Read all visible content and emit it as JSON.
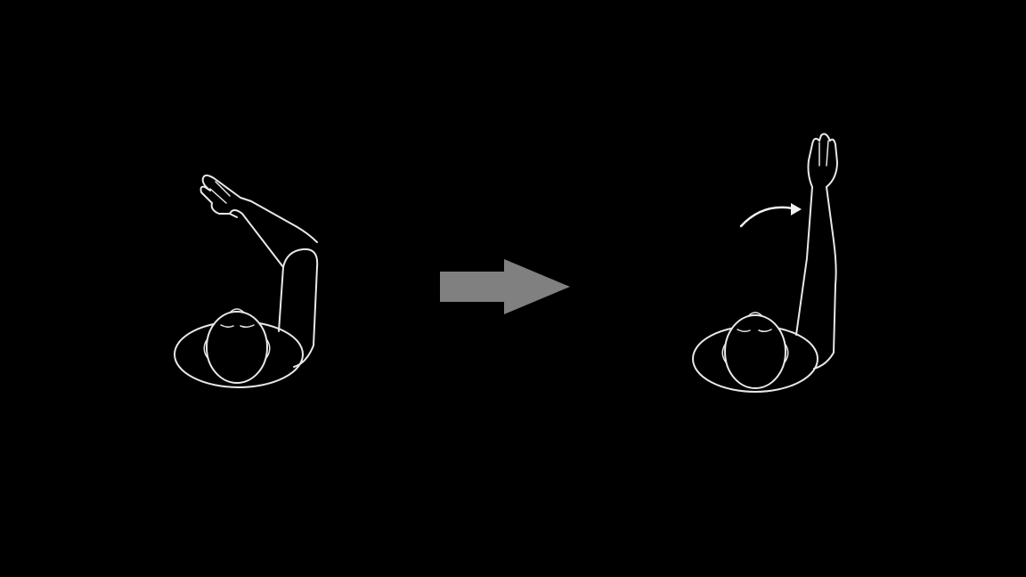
{
  "background_color": "#000000",
  "line_color": "#e8e8e8",
  "transition_arrow_color": "#808080",
  "figures": [
    {
      "id": "before",
      "description_icon": "person-top-view-arm-diagonal-icon"
    },
    {
      "id": "after",
      "description_icon": "person-top-view-arm-raised-icon"
    }
  ],
  "transition_icon": "right-arrow-icon",
  "motion_icon": "curved-arrow-icon"
}
